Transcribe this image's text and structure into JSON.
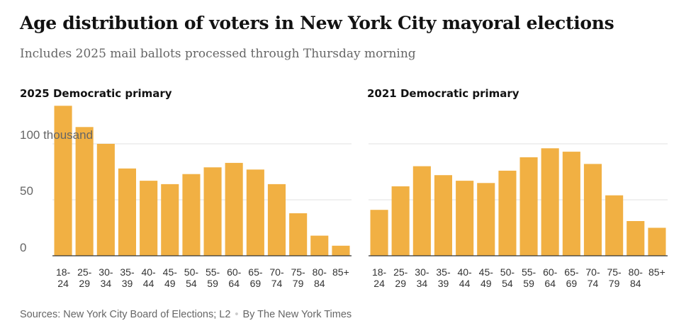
{
  "title": "Age distribution of voters in New York City mayoral elections",
  "subtitle": "Includes 2025 mail ballots processed through Thursday morning",
  "source": {
    "sources": "Sources: New York City Board of Elections; L2",
    "byline": "By The New York Times"
  },
  "colors": {
    "bar": "#f1b043",
    "grid": "#e2e2e2",
    "axis": "#333333"
  },
  "chart_data": [
    {
      "type": "bar",
      "title": "2025 Democratic primary",
      "xlabel": "",
      "ylabel": "",
      "y_unit": "thousand",
      "ylim": [
        0,
        130
      ],
      "yticks": [
        {
          "value": 0,
          "label": "0"
        },
        {
          "value": 50,
          "label": "50"
        },
        {
          "value": 100,
          "label": "100 thousand"
        }
      ],
      "grid": true,
      "categories": [
        "18-24",
        "25-29",
        "30-34",
        "35-39",
        "40-44",
        "45-49",
        "50-54",
        "55-59",
        "60-64",
        "65-69",
        "70-74",
        "75-79",
        "80-84",
        "85+"
      ],
      "tick_labels": [
        [
          "18-",
          "24"
        ],
        [
          "25-",
          "29"
        ],
        [
          "30-",
          "34"
        ],
        [
          "35-",
          "39"
        ],
        [
          "40-",
          "44"
        ],
        [
          "45-",
          "49"
        ],
        [
          "50-",
          "54"
        ],
        [
          "55-",
          "59"
        ],
        [
          "60-",
          "64"
        ],
        [
          "65-",
          "69"
        ],
        [
          "70-",
          "74"
        ],
        [
          "75-",
          "79"
        ],
        [
          "80-",
          "84"
        ],
        [
          "85+",
          ""
        ]
      ],
      "values": [
        134,
        115,
        100,
        78,
        67,
        64,
        73,
        79,
        83,
        77,
        64,
        38,
        18,
        9
      ]
    },
    {
      "type": "bar",
      "title": "2021 Democratic primary",
      "xlabel": "",
      "ylabel": "",
      "ylim": [
        0,
        130
      ],
      "yticks": [
        {
          "value": 0,
          "label": ""
        },
        {
          "value": 50,
          "label": ""
        },
        {
          "value": 100,
          "label": ""
        }
      ],
      "grid": true,
      "categories": [
        "18-24",
        "25-29",
        "30-34",
        "35-39",
        "40-44",
        "45-49",
        "50-54",
        "55-59",
        "60-64",
        "65-69",
        "70-74",
        "75-79",
        "80-84",
        "85+"
      ],
      "tick_labels": [
        [
          "18-",
          "24"
        ],
        [
          "25-",
          "29"
        ],
        [
          "30-",
          "34"
        ],
        [
          "35-",
          "39"
        ],
        [
          "40-",
          "44"
        ],
        [
          "45-",
          "49"
        ],
        [
          "50-",
          "54"
        ],
        [
          "55-",
          "59"
        ],
        [
          "60-",
          "64"
        ],
        [
          "65-",
          "69"
        ],
        [
          "70-",
          "74"
        ],
        [
          "75-",
          "79"
        ],
        [
          "80-",
          "84"
        ],
        [
          "85+",
          ""
        ]
      ],
      "values": [
        41,
        62,
        80,
        72,
        67,
        65,
        76,
        88,
        96,
        93,
        82,
        54,
        31,
        25
      ]
    }
  ]
}
